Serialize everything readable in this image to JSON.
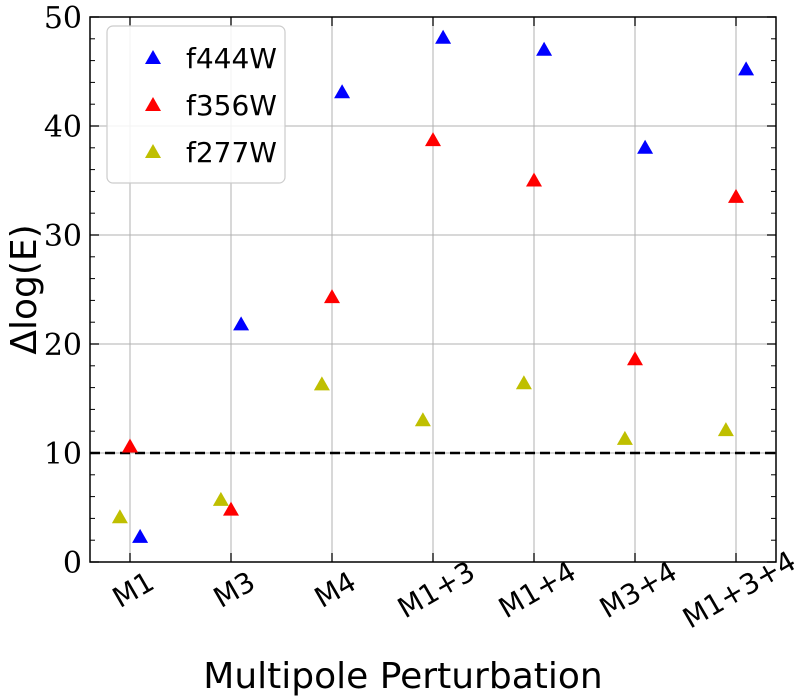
{
  "chart_data": {
    "type": "scatter",
    "title": "",
    "xlabel": "Multipole Perturbation",
    "ylabel": "Δlog(E)",
    "categories": [
      "M1",
      "M3",
      "M4",
      "M1+3",
      "M1+4",
      "M3+4",
      "M1+3+4"
    ],
    "ylim": [
      0,
      50
    ],
    "yticks": [
      0,
      10,
      20,
      30,
      40,
      50
    ],
    "grid": true,
    "legend_position": "top-left",
    "reference_line": {
      "y": 10,
      "style": "dashed",
      "color": "#000000"
    },
    "series": [
      {
        "name": "f444W",
        "color": "#0000ff",
        "marker": "triangle-up",
        "offset": 0.1,
        "values": [
          2.3,
          21.8,
          43.1,
          48.1,
          47.0,
          38.0,
          45.2
        ]
      },
      {
        "name": "f356W",
        "color": "#ff0000",
        "marker": "triangle-up",
        "offset": 0.0,
        "values": [
          10.6,
          4.8,
          24.3,
          38.7,
          35.0,
          18.6,
          33.5
        ]
      },
      {
        "name": "f277W",
        "color": "#bfbf00",
        "marker": "triangle-up",
        "offset": -0.1,
        "values": [
          4.1,
          5.7,
          16.3,
          13.0,
          16.4,
          11.3,
          12.1
        ]
      }
    ]
  }
}
